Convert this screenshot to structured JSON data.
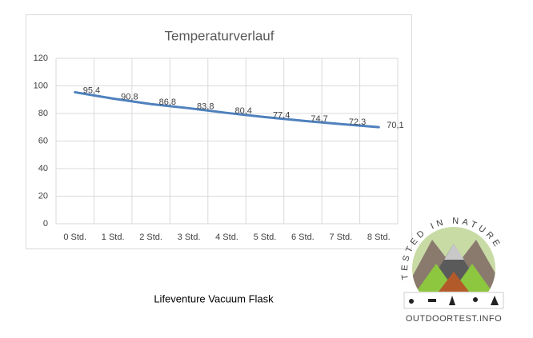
{
  "chart_data": {
    "type": "line",
    "title": "Temperaturverlauf",
    "categories": [
      "0 Std.",
      "1 Std.",
      "2 Std.",
      "3 Std.",
      "4 Std.",
      "5 Std.",
      "6 Std.",
      "7 Std.",
      "8 Std."
    ],
    "values": [
      95.4,
      90.8,
      86.8,
      83.8,
      80.4,
      77.4,
      74.7,
      72.3,
      70.1
    ],
    "value_labels": [
      "95,4",
      "90,8",
      "86,8",
      "83,8",
      "80,4",
      "77,4",
      "74,7",
      "72,3",
      "70,1"
    ],
    "color": "#4f81bd",
    "ylim": [
      0,
      120
    ],
    "yticks": [
      0,
      20,
      40,
      60,
      80,
      100,
      120
    ],
    "grid": true
  },
  "caption": "Lifeventure Vacuum Flask",
  "logo": {
    "arc_text": "TESTED IN NATURE",
    "site": "OUTDOORTEST.INFO"
  }
}
